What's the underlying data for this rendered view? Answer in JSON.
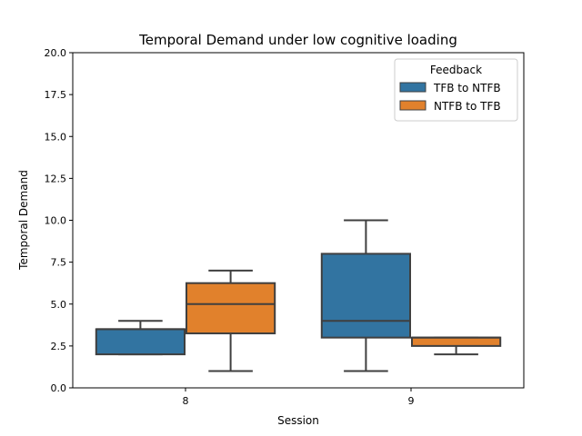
{
  "chart_data": {
    "type": "box",
    "title": "Temporal Demand under low cognitive loading",
    "xlabel": "Session",
    "ylabel": "Temporal Demand",
    "ylim": [
      0,
      20
    ],
    "yticks": [
      "0.0",
      "2.5",
      "5.0",
      "7.5",
      "10.0",
      "12.5",
      "15.0",
      "17.5",
      "20.0"
    ],
    "categories": [
      "8",
      "9"
    ],
    "legend": {
      "title": "Feedback",
      "placement": "upper right"
    },
    "series": [
      {
        "name": "TFB to NTFB",
        "color": "#3274a1",
        "boxes": [
          {
            "category": "8",
            "whisker_low": 2.0,
            "q1": 2.0,
            "median": 3.5,
            "q3": 3.5,
            "whisker_high": 4.0
          },
          {
            "category": "9",
            "whisker_low": 1.0,
            "q1": 3.0,
            "median": 4.0,
            "q3": 8.0,
            "whisker_high": 10.0
          }
        ]
      },
      {
        "name": "NTFB to TFB",
        "color": "#e1812c",
        "boxes": [
          {
            "category": "8",
            "whisker_low": 1.0,
            "q1": 3.25,
            "median": 5.0,
            "q3": 6.25,
            "whisker_high": 7.0
          },
          {
            "category": "9",
            "whisker_low": 2.0,
            "q1": 2.5,
            "median": 3.0,
            "q3": 3.0,
            "whisker_high": 3.0
          }
        ]
      }
    ]
  }
}
